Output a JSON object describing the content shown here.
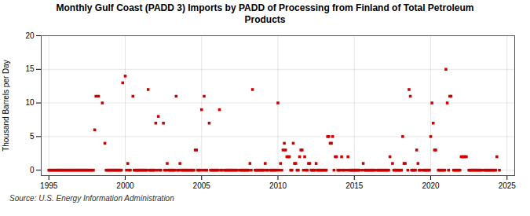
{
  "chart_data": {
    "type": "scatter",
    "title": "Monthly Gulf Coast (PADD 3) Imports by PADD of Processing from Finland of Total Petroleum\nProducts",
    "ylabel": "Thousand Barrels per Day",
    "source": "Source: U.S. Energy Information Administration",
    "color": "#cc0000",
    "marker": "square",
    "grid": true,
    "xlim": [
      1994.5,
      2025.5
    ],
    "ylim": [
      -0.8,
      20
    ],
    "xticks": [
      1995,
      2000,
      2005,
      2010,
      2015,
      2020,
      2025
    ],
    "yticks": [
      0,
      5,
      10,
      15,
      20
    ],
    "x": [
      1995.0,
      1995.083,
      1995.167,
      1995.25,
      1995.333,
      1995.417,
      1995.5,
      1995.583,
      1995.667,
      1995.75,
      1995.833,
      1995.917,
      1996.0,
      1996.083,
      1996.167,
      1996.25,
      1996.333,
      1996.417,
      1996.5,
      1996.583,
      1996.667,
      1996.75,
      1996.833,
      1996.917,
      1997.0,
      1997.083,
      1997.167,
      1997.25,
      1997.333,
      1997.417,
      1997.5,
      1997.583,
      1997.667,
      1997.75,
      1997.833,
      1997.917,
      1998.0,
      1998.083,
      1998.25,
      1998.5,
      1998.667,
      1998.75,
      1998.833,
      1998.917,
      1999.0,
      1999.083,
      1999.167,
      1999.25,
      1999.333,
      1999.417,
      1999.5,
      1999.583,
      1999.667,
      1999.75,
      1999.833,
      2000.0,
      2000.083,
      2000.167,
      2000.25,
      2000.333,
      2000.5,
      2000.583,
      2000.667,
      2000.75,
      2000.833,
      2000.917,
      2001.0,
      2001.083,
      2001.167,
      2001.25,
      2001.333,
      2001.417,
      2001.5,
      2001.583,
      2001.667,
      2001.75,
      2001.833,
      2001.917,
      2002.0,
      2002.083,
      2002.167,
      2002.25,
      2002.333,
      2002.5,
      2002.583,
      2002.667,
      2002.75,
      2002.833,
      2002.917,
      2003.0,
      2003.083,
      2003.167,
      2003.25,
      2003.333,
      2003.417,
      2003.5,
      2003.583,
      2003.667,
      2003.75,
      2003.833,
      2003.917,
      2004.0,
      2004.083,
      2004.167,
      2004.25,
      2004.333,
      2004.417,
      2004.5,
      2004.583,
      2004.667,
      2004.75,
      2004.833,
      2004.917,
      2005.0,
      2005.083,
      2005.167,
      2005.25,
      2005.333,
      2005.5,
      2005.583,
      2005.667,
      2005.75,
      2005.833,
      2005.917,
      2006.0,
      2006.083,
      2006.167,
      2006.25,
      2006.333,
      2006.5,
      2006.583,
      2006.667,
      2006.75,
      2006.833,
      2006.917,
      2007.0,
      2007.083,
      2007.167,
      2007.25,
      2007.333,
      2007.5,
      2007.583,
      2007.667,
      2007.75,
      2007.833,
      2007.917,
      2008.0,
      2008.083,
      2008.167,
      2008.25,
      2008.333,
      2008.5,
      2008.583,
      2008.667,
      2008.75,
      2008.833,
      2008.917,
      2009.0,
      2009.083,
      2009.167,
      2009.25,
      2009.333,
      2009.5,
      2009.583,
      2009.667,
      2009.75,
      2009.833,
      2009.917,
      2010.0,
      2010.083,
      2010.167,
      2010.25,
      2010.333,
      2010.417,
      2010.5,
      2010.583,
      2010.667,
      2010.75,
      2010.833,
      2010.917,
      2011.0,
      2011.083,
      2011.167,
      2011.25,
      2011.333,
      2011.417,
      2011.5,
      2011.583,
      2011.667,
      2011.75,
      2011.833,
      2011.917,
      2012.0,
      2012.083,
      2012.167,
      2012.25,
      2012.333,
      2012.417,
      2012.5,
      2012.583,
      2012.667,
      2012.75,
      2012.833,
      2012.917,
      2013.0,
      2013.083,
      2013.167,
      2013.25,
      2013.333,
      2013.417,
      2013.5,
      2013.583,
      2013.667,
      2013.75,
      2013.833,
      2013.917,
      2014.0,
      2014.083,
      2014.167,
      2014.25,
      2014.333,
      2014.5,
      2014.583,
      2014.667,
      2014.75,
      2014.833,
      2014.917,
      2015.0,
      2015.083,
      2015.167,
      2015.25,
      2015.333,
      2015.5,
      2015.583,
      2015.667,
      2015.75,
      2015.833,
      2015.917,
      2016.0,
      2016.083,
      2016.167,
      2016.25,
      2016.333,
      2016.5,
      2016.583,
      2016.667,
      2016.75,
      2016.833,
      2016.917,
      2017.0,
      2017.083,
      2017.167,
      2017.25,
      2017.333,
      2017.5,
      2017.583,
      2017.667,
      2017.75,
      2017.833,
      2017.917,
      2018.0,
      2018.083,
      2018.167,
      2018.25,
      2018.333,
      2018.5,
      2018.583,
      2018.667,
      2018.75,
      2018.833,
      2018.917,
      2019.0,
      2019.083,
      2019.167,
      2019.25,
      2019.333,
      2019.5,
      2019.583,
      2019.667,
      2019.75,
      2019.833,
      2019.917,
      2020.0,
      2020.083,
      2020.167,
      2020.25,
      2020.333,
      2020.5,
      2020.583,
      2020.667,
      2020.75,
      2020.833,
      2020.917,
      2021.0,
      2021.083,
      2021.167,
      2021.25,
      2021.333,
      2021.5,
      2021.583,
      2021.667,
      2021.75,
      2021.833,
      2021.917,
      2022.0,
      2022.083,
      2022.167,
      2022.25,
      2022.333,
      2022.5,
      2022.583,
      2022.667,
      2022.75,
      2022.833,
      2022.917,
      2023.0,
      2023.083,
      2023.167,
      2023.25,
      2023.333,
      2023.5,
      2023.583,
      2023.667,
      2023.75,
      2023.833,
      2023.917,
      2024.0,
      2024.083,
      2024.167,
      2024.25,
      2024.333,
      2024.5
    ],
    "values": [
      0,
      0,
      0,
      0,
      0,
      0,
      0,
      0,
      0,
      0,
      0,
      0,
      0,
      0,
      0,
      0,
      0,
      0,
      0,
      0,
      0,
      0,
      0,
      0,
      0,
      0,
      0,
      0,
      0,
      0,
      0,
      0,
      0,
      0,
      0,
      0,
      6,
      11,
      11,
      10,
      4,
      0,
      0,
      0,
      0,
      0,
      0,
      0,
      0,
      0,
      0,
      0,
      0,
      0,
      13,
      14,
      0,
      1,
      0,
      0,
      11,
      0,
      0,
      0,
      0,
      0,
      0,
      0,
      0,
      0,
      0,
      0,
      12,
      0,
      0,
      0,
      0,
      0,
      7,
      0,
      8,
      0,
      0,
      7,
      0,
      0,
      1,
      0,
      0,
      0,
      0,
      0,
      0,
      11,
      0,
      0,
      1,
      0,
      0,
      0,
      0,
      0,
      0,
      0,
      0,
      0,
      0,
      0,
      3,
      3,
      0,
      0,
      0,
      9,
      0,
      11,
      0,
      0,
      7,
      0,
      0,
      0,
      0,
      0,
      0,
      0,
      9,
      0,
      0,
      0,
      0,
      0,
      0,
      0,
      0,
      0,
      0,
      0,
      0,
      0,
      0,
      0,
      0,
      0,
      0,
      0,
      0,
      0,
      1,
      0,
      12,
      0,
      0,
      0,
      0,
      0,
      0,
      0,
      0,
      1,
      0,
      0,
      0,
      0,
      0,
      0,
      0,
      0,
      10,
      0,
      1,
      0,
      3,
      4,
      3,
      2,
      2,
      2,
      0,
      0,
      4,
      1,
      1,
      0,
      0,
      2,
      3,
      3,
      0,
      2,
      0,
      0,
      1,
      1,
      0,
      0,
      0,
      0,
      1,
      0,
      0,
      0,
      0,
      0,
      0,
      0,
      0,
      5,
      5,
      4,
      4,
      5,
      0,
      2,
      2,
      0,
      0,
      0,
      2,
      0,
      0,
      0,
      2,
      0,
      0,
      0,
      0,
      0,
      0,
      0,
      0,
      0,
      0,
      1,
      0,
      0,
      0,
      0,
      0,
      0,
      0,
      0,
      0,
      0,
      0,
      0,
      0,
      0,
      0,
      0,
      0,
      0,
      0,
      2,
      1,
      0,
      0,
      0,
      0,
      0,
      0,
      0,
      5,
      1,
      1,
      0,
      12,
      11,
      0,
      0,
      0,
      0,
      3,
      1,
      0,
      0,
      0,
      0,
      0,
      0,
      0,
      0,
      5,
      10,
      7,
      3,
      3,
      0,
      0,
      0,
      0,
      0,
      0,
      15,
      10,
      0,
      11,
      11,
      0,
      0,
      0,
      0,
      0,
      0,
      2,
      2,
      2,
      2,
      2,
      0,
      0,
      0,
      0,
      0,
      0,
      0,
      0,
      0,
      0,
      0,
      0,
      0,
      0,
      0,
      0,
      0,
      0,
      0,
      0,
      0,
      2,
      0
    ]
  }
}
